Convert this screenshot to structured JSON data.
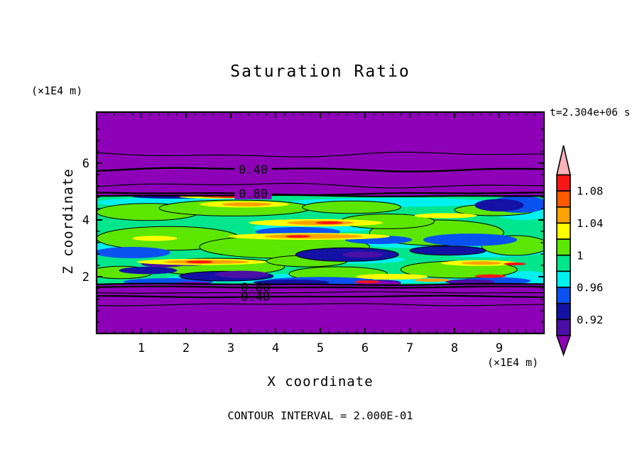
{
  "title": "Saturation Ratio",
  "time_label": "t=2.304e+06 s",
  "contour_note": "CONTOUR INTERVAL = 2.000E-01",
  "x_axis": {
    "title": "X coordinate",
    "unit_label": "(×1E4 m)",
    "tick_labels": [
      "1",
      "2",
      "3",
      "4",
      "5",
      "6",
      "7",
      "8",
      "9"
    ],
    "range": [
      0,
      10
    ],
    "minor_step": 0.2
  },
  "y_axis": {
    "title": "Z coordinate",
    "unit_label": "(×1E4 m)",
    "tick_labels": [
      "2",
      "4",
      "6"
    ],
    "tick_values": [
      2,
      4,
      6
    ],
    "range": [
      0,
      7.8
    ],
    "minor_step": 0.4
  },
  "colorbar": {
    "labels": [
      "1.08",
      "1.04",
      "1",
      "0.96",
      "0.92"
    ],
    "box_colors_top_to_bottom": [
      "#F51616",
      "#FF5A00",
      "#FFA200",
      "#FFFF00",
      "#5CE600",
      "#00E68C",
      "#00F0F0",
      "#0A52F0",
      "#1312A4",
      "#4A10A5"
    ],
    "over_color": "#FFB2B8",
    "under_color": "#8E00B8",
    "boundary_values_top_to_bottom": [
      1.1,
      1.08,
      1.06,
      1.04,
      1.02,
      1.0,
      0.98,
      0.96,
      0.94,
      0.92,
      0.9
    ]
  },
  "chart_data": {
    "type": "contour",
    "title": "Saturation Ratio",
    "xlabel": "X coordinate (×1E4 m)",
    "ylabel": "Z coordinate (×1E4 m)",
    "x_range": [
      0,
      10
    ],
    "z_range": [
      0,
      7.8
    ],
    "time_annotation": "t=2.304e+06 s",
    "contour_interval": 0.2,
    "background_color": "#8E00B8",
    "fill_levels": [
      0.9,
      0.92,
      0.94,
      0.96,
      0.98,
      1.0,
      1.02,
      1.04,
      1.06,
      1.08,
      1.1
    ],
    "fill_colors_low_to_high": [
      "#4A10A5",
      "#1312A4",
      "#0A52F0",
      "#00F0F0",
      "#00E68C",
      "#5CE600",
      "#FFFF00",
      "#FFA200",
      "#FF5A00",
      "#F51616"
    ],
    "band": {
      "z_top": 4.85,
      "z_bottom": 1.73,
      "base_color": "#00E68C"
    },
    "line_contours": [
      {
        "level": 0.2,
        "z": 6.3,
        "amp": 4.0,
        "width": 1.2
      },
      {
        "level": 0.4,
        "z": 5.78,
        "amp": 3.0,
        "width": 2.4,
        "label": "0.40",
        "label_x": 3.5,
        "label_bg": true
      },
      {
        "level": 0.6,
        "z": 5.22,
        "amp": 4.0,
        "width": 1.2
      },
      {
        "level": 0.8,
        "z": 4.93,
        "amp": 2.0,
        "width": 2.2,
        "label": "0.80",
        "label_x": 3.5,
        "label_bg": true
      },
      {
        "level": 0.8,
        "z": 1.63,
        "amp": 1.2,
        "width": 2.2,
        "label": "0.80",
        "label_x": 3.55,
        "label_bg": false
      },
      {
        "level": 0.6,
        "z": 1.44,
        "amp": 1.2,
        "width": 1.2
      },
      {
        "level": 0.4,
        "z": 1.3,
        "amp": 1.2,
        "width": 2.2,
        "label": "0.40",
        "label_x": 3.55,
        "label_bg": false
      },
      {
        "level": 0.2,
        "z": 1.02,
        "amp": 1.8,
        "width": 1.2
      }
    ],
    "texture_patches": [
      [
        1.9,
        4.62,
        1.9,
        0.18,
        "#00F0F0",
        0
      ],
      [
        6.6,
        4.62,
        2.3,
        0.16,
        "#00F0F0",
        0
      ],
      [
        9.55,
        4.35,
        0.75,
        0.35,
        "#00F0F0",
        0
      ],
      [
        4.9,
        3.72,
        1.4,
        0.16,
        "#00F0F0",
        0
      ],
      [
        8.75,
        2.9,
        1.3,
        0.22,
        "#00F0F0",
        0
      ],
      [
        3.5,
        1.95,
        1.9,
        0.16,
        "#00F0F0",
        0
      ],
      [
        7.2,
        1.92,
        1.6,
        0.14,
        "#00F0F0",
        0
      ],
      [
        0.45,
        3.05,
        0.7,
        0.18,
        "#00F0F0",
        0
      ],
      [
        5.8,
        2.6,
        1.1,
        0.14,
        "#00F0F0",
        0
      ],
      [
        9.6,
        1.95,
        0.55,
        0.25,
        "#00F0F0",
        0
      ],
      [
        2.5,
        3.08,
        0.9,
        0.12,
        "#00F0F0",
        0
      ],
      [
        6.9,
        3.15,
        0.9,
        0.14,
        "#00F0F0",
        0
      ],
      [
        1.15,
        4.28,
        1.15,
        0.3,
        "#5CE600",
        1
      ],
      [
        3.1,
        4.42,
        1.7,
        0.28,
        "#5CE600",
        1
      ],
      [
        5.7,
        4.45,
        1.1,
        0.22,
        "#5CE600",
        1
      ],
      [
        1.6,
        3.35,
        1.6,
        0.42,
        "#5CE600",
        1
      ],
      [
        4.2,
        3.05,
        1.9,
        0.4,
        "#5CE600",
        1
      ],
      [
        7.6,
        3.55,
        1.5,
        0.45,
        "#5CE600",
        1
      ],
      [
        9.35,
        3.1,
        0.75,
        0.35,
        "#5CE600",
        1
      ],
      [
        2.7,
        2.35,
        1.5,
        0.3,
        "#5CE600",
        1
      ],
      [
        5.4,
        2.1,
        1.1,
        0.25,
        "#5CE600",
        1
      ],
      [
        8.1,
        2.25,
        1.3,
        0.3,
        "#5CE600",
        1
      ],
      [
        6.5,
        3.95,
        1.05,
        0.26,
        "#5CE600",
        1
      ],
      [
        0.55,
        2.15,
        0.7,
        0.22,
        "#5CE600",
        1
      ],
      [
        8.9,
        4.35,
        0.9,
        0.2,
        "#5CE600",
        1
      ],
      [
        4.7,
        2.55,
        0.9,
        0.2,
        "#5CE600",
        1
      ],
      [
        4.5,
        3.58,
        0.95,
        0.17,
        "#0A52F0",
        0
      ],
      [
        0.8,
        2.85,
        0.85,
        0.2,
        "#0A52F0",
        0
      ],
      [
        8.35,
        3.3,
        1.05,
        0.22,
        "#0A52F0",
        0
      ],
      [
        5.0,
        1.85,
        1.25,
        0.14,
        "#0A52F0",
        0
      ],
      [
        1.6,
        1.82,
        1.0,
        0.13,
        "#0A52F0",
        0
      ],
      [
        9.45,
        4.55,
        0.65,
        0.3,
        "#0A52F0",
        0
      ],
      [
        6.3,
        3.3,
        0.75,
        0.15,
        "#0A52F0",
        0
      ],
      [
        8.9,
        1.85,
        0.8,
        0.13,
        "#0A52F0",
        0
      ],
      [
        5.6,
        2.78,
        1.15,
        0.24,
        "#1312A4",
        1
      ],
      [
        2.9,
        2.02,
        1.05,
        0.17,
        "#1312A4",
        1
      ],
      [
        7.85,
        2.92,
        0.85,
        0.16,
        "#1312A4",
        1
      ],
      [
        1.15,
        2.22,
        0.65,
        0.13,
        "#1312A4",
        0
      ],
      [
        9.0,
        4.52,
        0.55,
        0.22,
        "#1312A4",
        0
      ],
      [
        4.35,
        1.8,
        0.85,
        0.1,
        "#1312A4",
        0
      ],
      [
        1.7,
        4.82,
        0.9,
        0.07,
        "#1312A4",
        0
      ],
      [
        3.25,
        2.08,
        0.6,
        0.13,
        "#4A10A5",
        0
      ],
      [
        5.95,
        2.78,
        0.45,
        0.11,
        "#4A10A5",
        0
      ],
      [
        2.05,
        2.48,
        0.45,
        0.1,
        "#4A10A5",
        0
      ],
      [
        8.35,
        1.82,
        0.55,
        0.09,
        "#4A10A5",
        0
      ],
      [
        1.5,
        2.45,
        0.5,
        0.12,
        "#4A10A5",
        0
      ],
      [
        6.35,
        1.8,
        0.45,
        0.09,
        "#4A10A5",
        0
      ],
      [
        2.15,
        1.76,
        0.4,
        0.06,
        "#8E00B8",
        0
      ],
      [
        6.3,
        1.76,
        0.5,
        0.06,
        "#8E00B8",
        0
      ],
      [
        3.3,
        4.55,
        1.0,
        0.11,
        "#FFFF00",
        0
      ],
      [
        4.9,
        3.9,
        1.5,
        0.13,
        "#FFFF00",
        0
      ],
      [
        4.75,
        3.42,
        1.8,
        0.12,
        "#FFFF00",
        0
      ],
      [
        2.35,
        2.52,
        1.45,
        0.11,
        "#FFFF00",
        0
      ],
      [
        6.6,
        2.0,
        0.8,
        0.1,
        "#FFFF00",
        0
      ],
      [
        8.55,
        2.48,
        0.85,
        0.1,
        "#FFFF00",
        0
      ],
      [
        7.8,
        4.15,
        0.7,
        0.09,
        "#FFFF00",
        0
      ],
      [
        1.3,
        3.35,
        0.5,
        0.09,
        "#FFFF00",
        0
      ],
      [
        2.75,
        4.82,
        0.9,
        0.07,
        "#FFFF00",
        0
      ],
      [
        4.85,
        3.42,
        1.1,
        0.08,
        "#FFA200",
        0
      ],
      [
        2.45,
        2.52,
        0.95,
        0.07,
        "#FFA200",
        0
      ],
      [
        3.35,
        4.55,
        0.55,
        0.07,
        "#FFA200",
        0
      ],
      [
        5.0,
        3.9,
        0.75,
        0.08,
        "#FFA200",
        0
      ],
      [
        8.6,
        2.48,
        0.45,
        0.06,
        "#FFA200",
        0
      ],
      [
        2.9,
        4.82,
        0.55,
        0.05,
        "#FF5A00",
        0
      ],
      [
        7.5,
        1.88,
        0.4,
        0.06,
        "#FFA200",
        0
      ],
      [
        3.05,
        4.82,
        0.3,
        0.045,
        "#F51616",
        0
      ],
      [
        2.3,
        2.52,
        0.3,
        0.05,
        "#F51616",
        0
      ],
      [
        4.5,
        3.42,
        0.28,
        0.045,
        "#F51616",
        0
      ],
      [
        8.8,
        2.02,
        0.35,
        0.06,
        "#F51616",
        0
      ],
      [
        9.35,
        2.45,
        0.25,
        0.05,
        "#F51616",
        0
      ],
      [
        6.05,
        1.82,
        0.28,
        0.05,
        "#F51616",
        0
      ],
      [
        5.2,
        3.9,
        0.3,
        0.05,
        "#F51616",
        0
      ]
    ]
  }
}
